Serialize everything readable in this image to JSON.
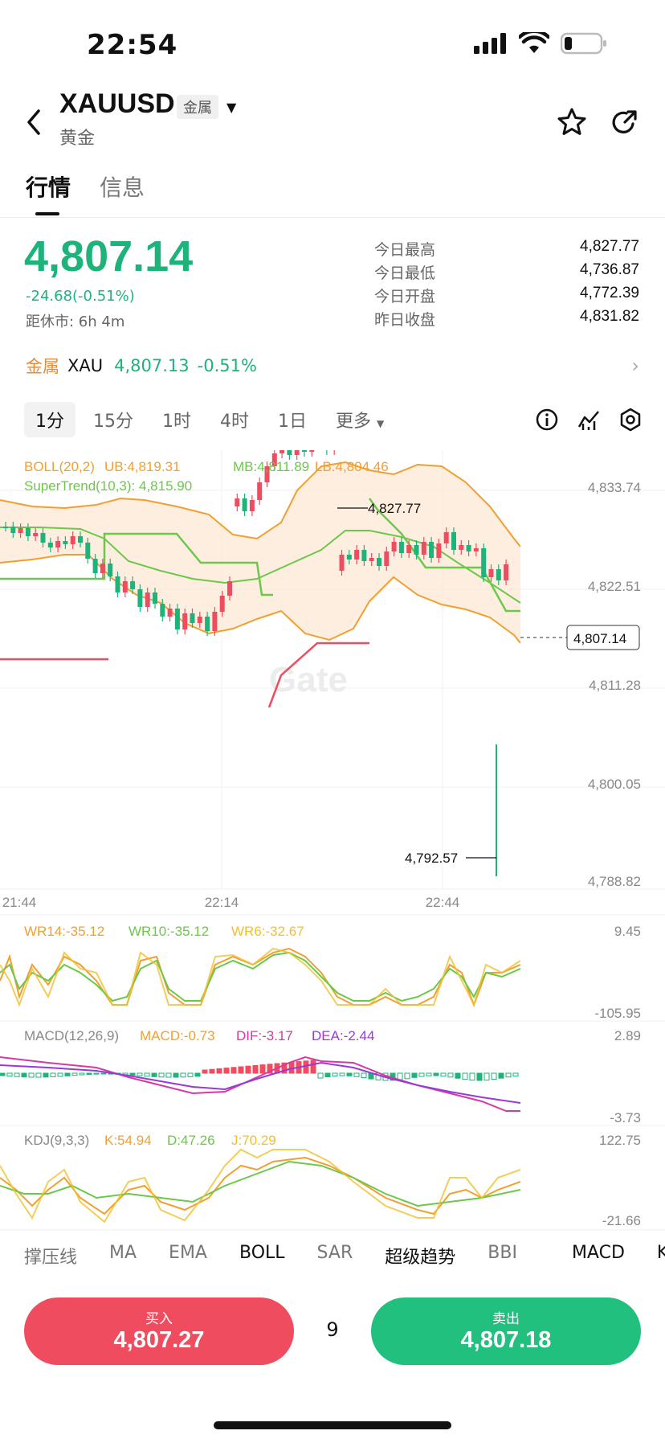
{
  "status": {
    "time": "22:54"
  },
  "header": {
    "symbol": "XAUUSD",
    "tag": "金属",
    "name": "黄金"
  },
  "tabs": [
    {
      "label": "行情"
    },
    {
      "label": "信息"
    }
  ],
  "quote": {
    "price": "4,807.14",
    "change": "-24.68(-0.51%)",
    "close_time": "距休市: 6h 4m",
    "stats": [
      {
        "label": "今日最高",
        "value": "4,827.77"
      },
      {
        "label": "今日最低",
        "value": "4,736.87"
      },
      {
        "label": "今日开盘",
        "value": "4,772.39"
      },
      {
        "label": "昨日收盘",
        "value": "4,831.82"
      }
    ]
  },
  "metal": {
    "label": "金属",
    "code": "XAU",
    "price": "4,807.13",
    "change": "-0.51%"
  },
  "intervals": [
    "1分",
    "15分",
    "1时",
    "4时",
    "1日",
    "更多"
  ],
  "main_chart": {
    "legend_boll_prefix": "BOLL(20,2)",
    "legend_ub": "UB:4,819.31",
    "legend_mb": "MB:4,811.89",
    "legend_lb": "LB:4,804.46",
    "legend_super": "SuperTrend(10,3): 4,815.90",
    "y_ticks": [
      "4,833.74",
      "4,822.51",
      "4,811.28",
      "4,800.05",
      "4,788.82"
    ],
    "x_ticks": [
      "21:44",
      "22:14",
      "22:44"
    ],
    "high_label": "4,827.77",
    "low_label": "4,792.57",
    "current_label": "4,807.14",
    "watermark": "Gate"
  },
  "wr": {
    "title": "WR14:-35.12",
    "wr10": "WR10:-35.12",
    "wr6": "WR6:-32.67",
    "top": "9.45",
    "bottom": "-105.95"
  },
  "macd": {
    "title": "MACD(12,26,9)",
    "macd": "MACD:-0.73",
    "dif": "DIF:-3.17",
    "dea": "DEA:-2.44",
    "top": "2.89",
    "bottom": "-3.73"
  },
  "kdj": {
    "title": "KDJ(9,3,3)",
    "k": "K:54.94",
    "d": "D:47.26",
    "j": "J:70.29",
    "top": "122.75",
    "bottom": "-21.66"
  },
  "indicator_tabs": [
    "撑压线",
    "MA",
    "EMA",
    "BOLL",
    "SAR",
    "超级趋势",
    "BBI",
    "MACD",
    "KD"
  ],
  "trade": {
    "buy_label": "买入",
    "buy_price": "4,807.27",
    "spread": "9",
    "sell_label": "卖出",
    "sell_price": "4,807.18"
  },
  "colors": {
    "up": "#1db37a",
    "down": "#f04c5f",
    "boll": "#f0a030",
    "super": "#6cc84a"
  }
}
